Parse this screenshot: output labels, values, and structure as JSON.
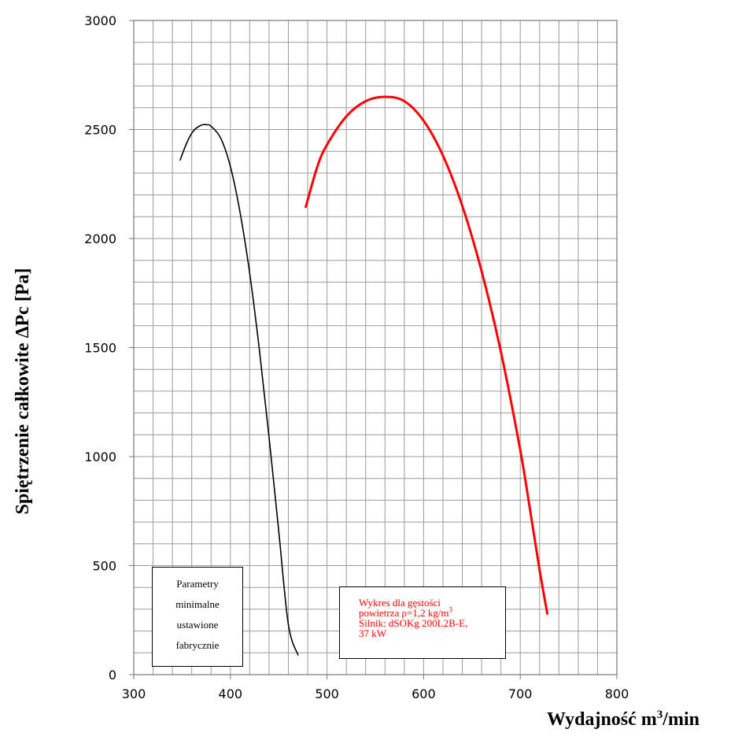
{
  "chart_data": {
    "type": "line",
    "xlabel": "Wydajność m",
    "xlabel_sup": "3",
    "xlabel_suffix": "/min",
    "ylabel": "Spiętrzenie całkowite   ΔPc   [Pa]",
    "xlim": [
      300,
      800
    ],
    "ylim": [
      0,
      3000
    ],
    "x_ticks": [
      300,
      400,
      500,
      600,
      700,
      800
    ],
    "y_ticks": [
      0,
      500,
      1000,
      1500,
      2000,
      2500,
      3000
    ],
    "x_minor_step": 20,
    "y_minor_step": 100,
    "grid": true,
    "series": [
      {
        "color": "#000000",
        "x": [
          348,
          355,
          362,
          370,
          375,
          380,
          390,
          400,
          410,
          420,
          430,
          440,
          450,
          460,
          470
        ],
        "y": [
          2360,
          2440,
          2495,
          2520,
          2522,
          2515,
          2460,
          2330,
          2120,
          1840,
          1490,
          1090,
          660,
          230,
          90
        ]
      },
      {
        "color": "#ff0000",
        "x": [
          478,
          490,
          500,
          520,
          540,
          560,
          580,
          600,
          620,
          640,
          660,
          680,
          700,
          710,
          720,
          728
        ],
        "y": [
          2145,
          2330,
          2430,
          2560,
          2630,
          2650,
          2630,
          2540,
          2380,
          2150,
          1850,
          1480,
          1030,
          760,
          480,
          280
        ]
      }
    ]
  },
  "boxes": {
    "min_params": [
      "Parametry",
      "minimalne",
      "ustawione",
      "fabrycznie"
    ],
    "info": {
      "line1": "Wykres dla gęstości",
      "line2": "powietrza ρ=1,2 kg/m",
      "line2_sup": "3",
      "line3": "Silnik: dSOKg 200L2B-E,",
      "line4": "37 kW"
    }
  }
}
